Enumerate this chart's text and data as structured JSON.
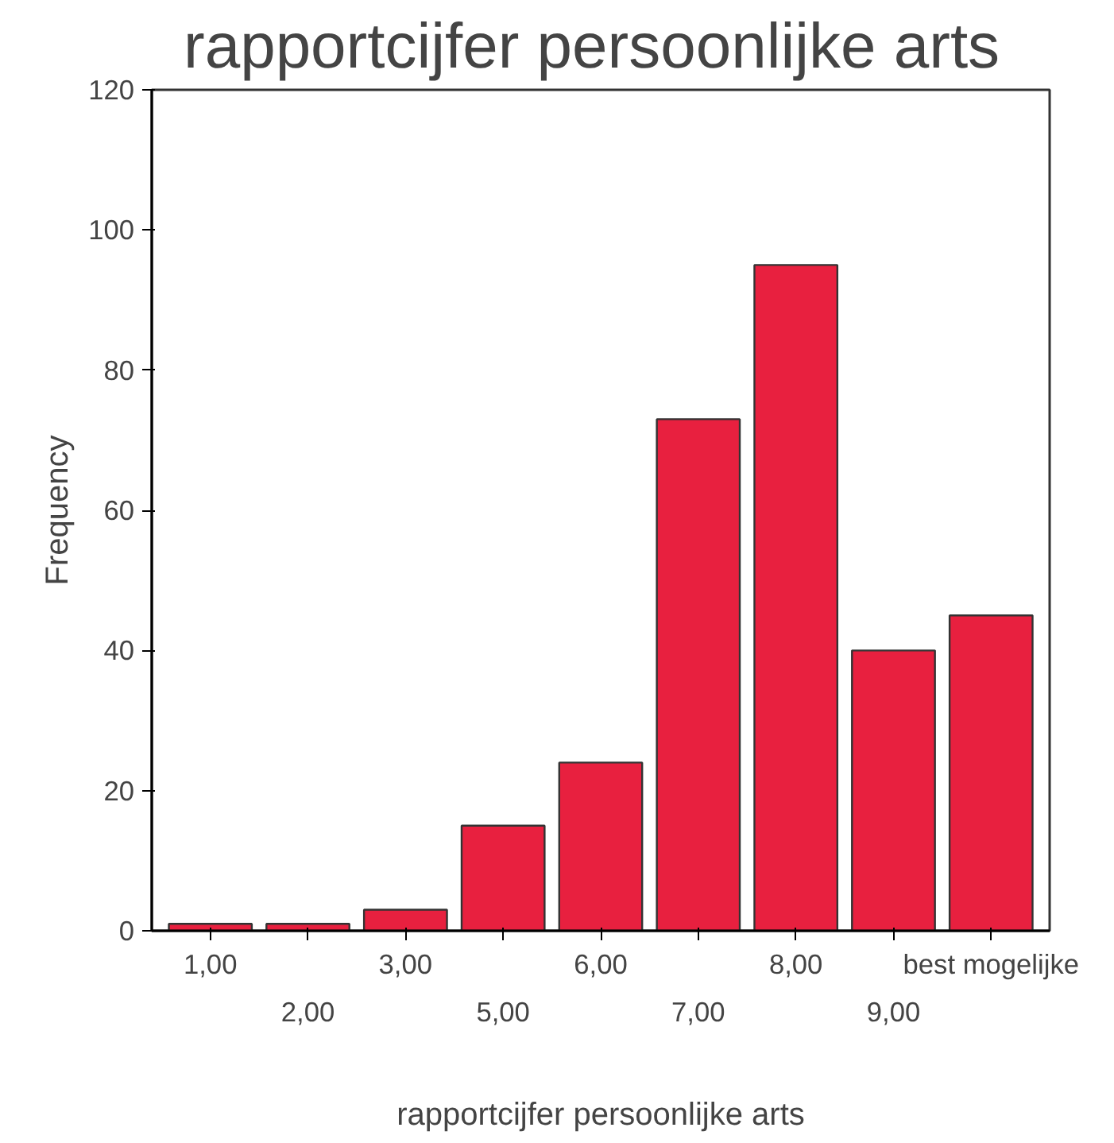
{
  "chart_data": {
    "type": "bar",
    "title": "rapportcijfer persoonlijke arts",
    "xlabel": "rapportcijfer persoonlijke arts",
    "ylabel": "Frequency",
    "categories": [
      "1,00",
      "2,00",
      "3,00",
      "5,00",
      "6,00",
      "7,00",
      "8,00",
      "9,00",
      "best mogelijke"
    ],
    "values": [
      1,
      1,
      3,
      15,
      24,
      73,
      95,
      40,
      45
    ],
    "color": "#e8203f",
    "ylim": [
      0,
      120
    ],
    "yticks": [
      0,
      20,
      40,
      60,
      80,
      100,
      120
    ],
    "grid": false
  }
}
